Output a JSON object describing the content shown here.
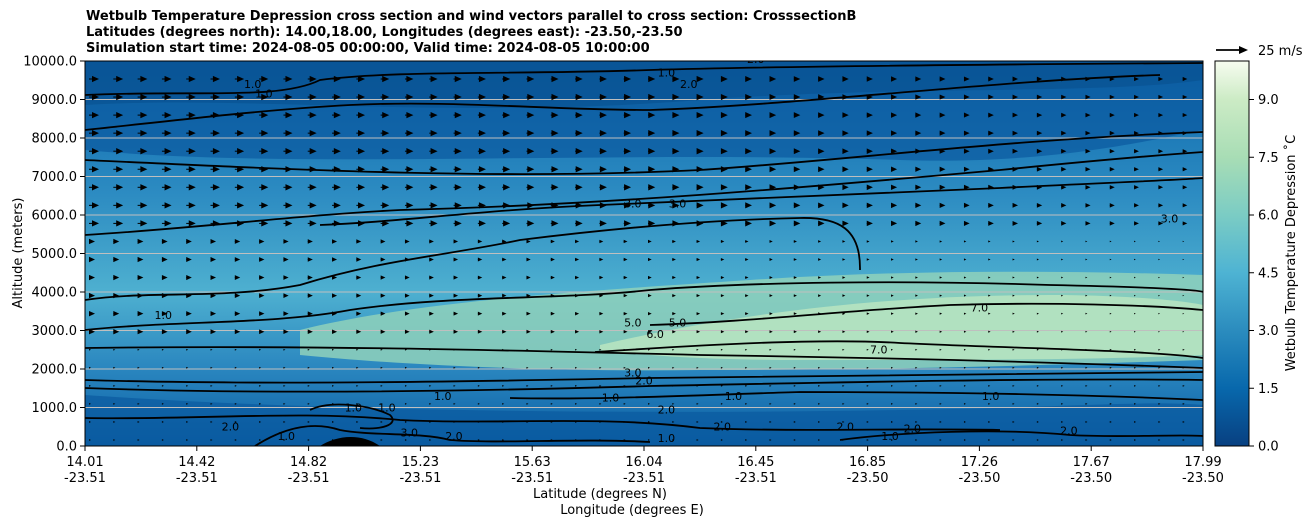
{
  "chart_data": {
    "type": "contour",
    "title_lines": [
      "Wetbulb Temperature Depression cross section and wind vectors parallel to cross section: CrosssectionB",
      "Latitudes (degrees north): 14.00,18.00, Longitudes (degrees east): -23.50,-23.50",
      "Simulation start time: 2024-08-05 00:00:00, Valid time: 2024-08-05 10:00:00"
    ],
    "ylabel": "Altitude (meters)",
    "xlabel_lat": "Latitude (degrees N)",
    "xlabel_lon": "Longitude (degrees E)",
    "ylim": [
      0,
      10000
    ],
    "xlim": [
      0,
      10
    ],
    "yticks": [
      "0.0",
      "1000.0",
      "2000.0",
      "3000.0",
      "4000.0",
      "5000.0",
      "6000.0",
      "7000.0",
      "8000.0",
      "9000.0",
      "10000.0"
    ],
    "ytick_values": [
      0,
      1000,
      2000,
      3000,
      4000,
      5000,
      6000,
      7000,
      8000,
      9000,
      10000
    ],
    "xticks_lat": [
      "14.01",
      "14.42",
      "14.82",
      "15.23",
      "15.63",
      "16.04",
      "16.45",
      "16.85",
      "17.26",
      "17.67",
      "17.99"
    ],
    "xticks_lon": [
      "-23.51",
      "-23.51",
      "-23.51",
      "-23.51",
      "-23.51",
      "-23.51",
      "-23.51",
      "-23.50",
      "-23.50",
      "-23.50",
      "-23.50"
    ],
    "colorbar": {
      "label": "Wetbulb Temperature Depression ˚C",
      "range": [
        0,
        10
      ],
      "ticks": [
        "0.0",
        "1.5",
        "3.0",
        "4.5",
        "6.0",
        "7.5",
        "9.0"
      ],
      "tick_values": [
        0,
        1.5,
        3.0,
        4.5,
        6.0,
        7.5,
        9.0
      ]
    },
    "quiver_key": "25 m/s",
    "contour_labels": [
      {
        "text": "1.0",
        "x": 5.2,
        "y": 9600
      },
      {
        "text": "2.0",
        "x": 5.4,
        "y": 9300
      },
      {
        "text": "2.0",
        "x": 6.0,
        "y": 9950
      },
      {
        "text": "1.0",
        "x": 1.5,
        "y": 9300
      },
      {
        "text": "1.0",
        "x": 1.6,
        "y": 9050
      },
      {
        "text": "3.0",
        "x": 4.9,
        "y": 6200
      },
      {
        "text": "3.0",
        "x": 5.3,
        "y": 6200
      },
      {
        "text": "3.0",
        "x": 9.7,
        "y": 5800
      },
      {
        "text": "1.0",
        "x": 0.7,
        "y": 3300
      },
      {
        "text": "5.0",
        "x": 4.9,
        "y": 3100
      },
      {
        "text": "5.0",
        "x": 5.3,
        "y": 3100
      },
      {
        "text": "6.0",
        "x": 5.1,
        "y": 2800
      },
      {
        "text": "7.0",
        "x": 7.1,
        "y": 2400
      },
      {
        "text": "7.0",
        "x": 8.0,
        "y": 3500
      },
      {
        "text": "3.0",
        "x": 4.9,
        "y": 1800
      },
      {
        "text": "2.0",
        "x": 5.0,
        "y": 1600
      },
      {
        "text": "2.0",
        "x": 5.2,
        "y": 850
      },
      {
        "text": "1.0",
        "x": 3.2,
        "y": 1200
      },
      {
        "text": "1.0",
        "x": 4.7,
        "y": 1150
      },
      {
        "text": "1.0",
        "x": 5.8,
        "y": 1200
      },
      {
        "text": "1.0",
        "x": 8.1,
        "y": 1200
      },
      {
        "text": "2.0",
        "x": 1.3,
        "y": 400
      },
      {
        "text": "1.0",
        "x": 1.8,
        "y": 150
      },
      {
        "text": "1.0",
        "x": 2.4,
        "y": 900
      },
      {
        "text": "1.0",
        "x": 2.7,
        "y": 900
      },
      {
        "text": "3.0",
        "x": 2.9,
        "y": 250
      },
      {
        "text": "2.0",
        "x": 3.3,
        "y": 150
      },
      {
        "text": "2.0",
        "x": 5.7,
        "y": 400
      },
      {
        "text": "1.0",
        "x": 5.2,
        "y": 100
      },
      {
        "text": "2.0",
        "x": 6.8,
        "y": 400
      },
      {
        "text": "1.0",
        "x": 7.2,
        "y": 150
      },
      {
        "text": "2.0",
        "x": 7.4,
        "y": 350
      },
      {
        "text": "2.0",
        "x": 8.8,
        "y": 300
      }
    ]
  }
}
